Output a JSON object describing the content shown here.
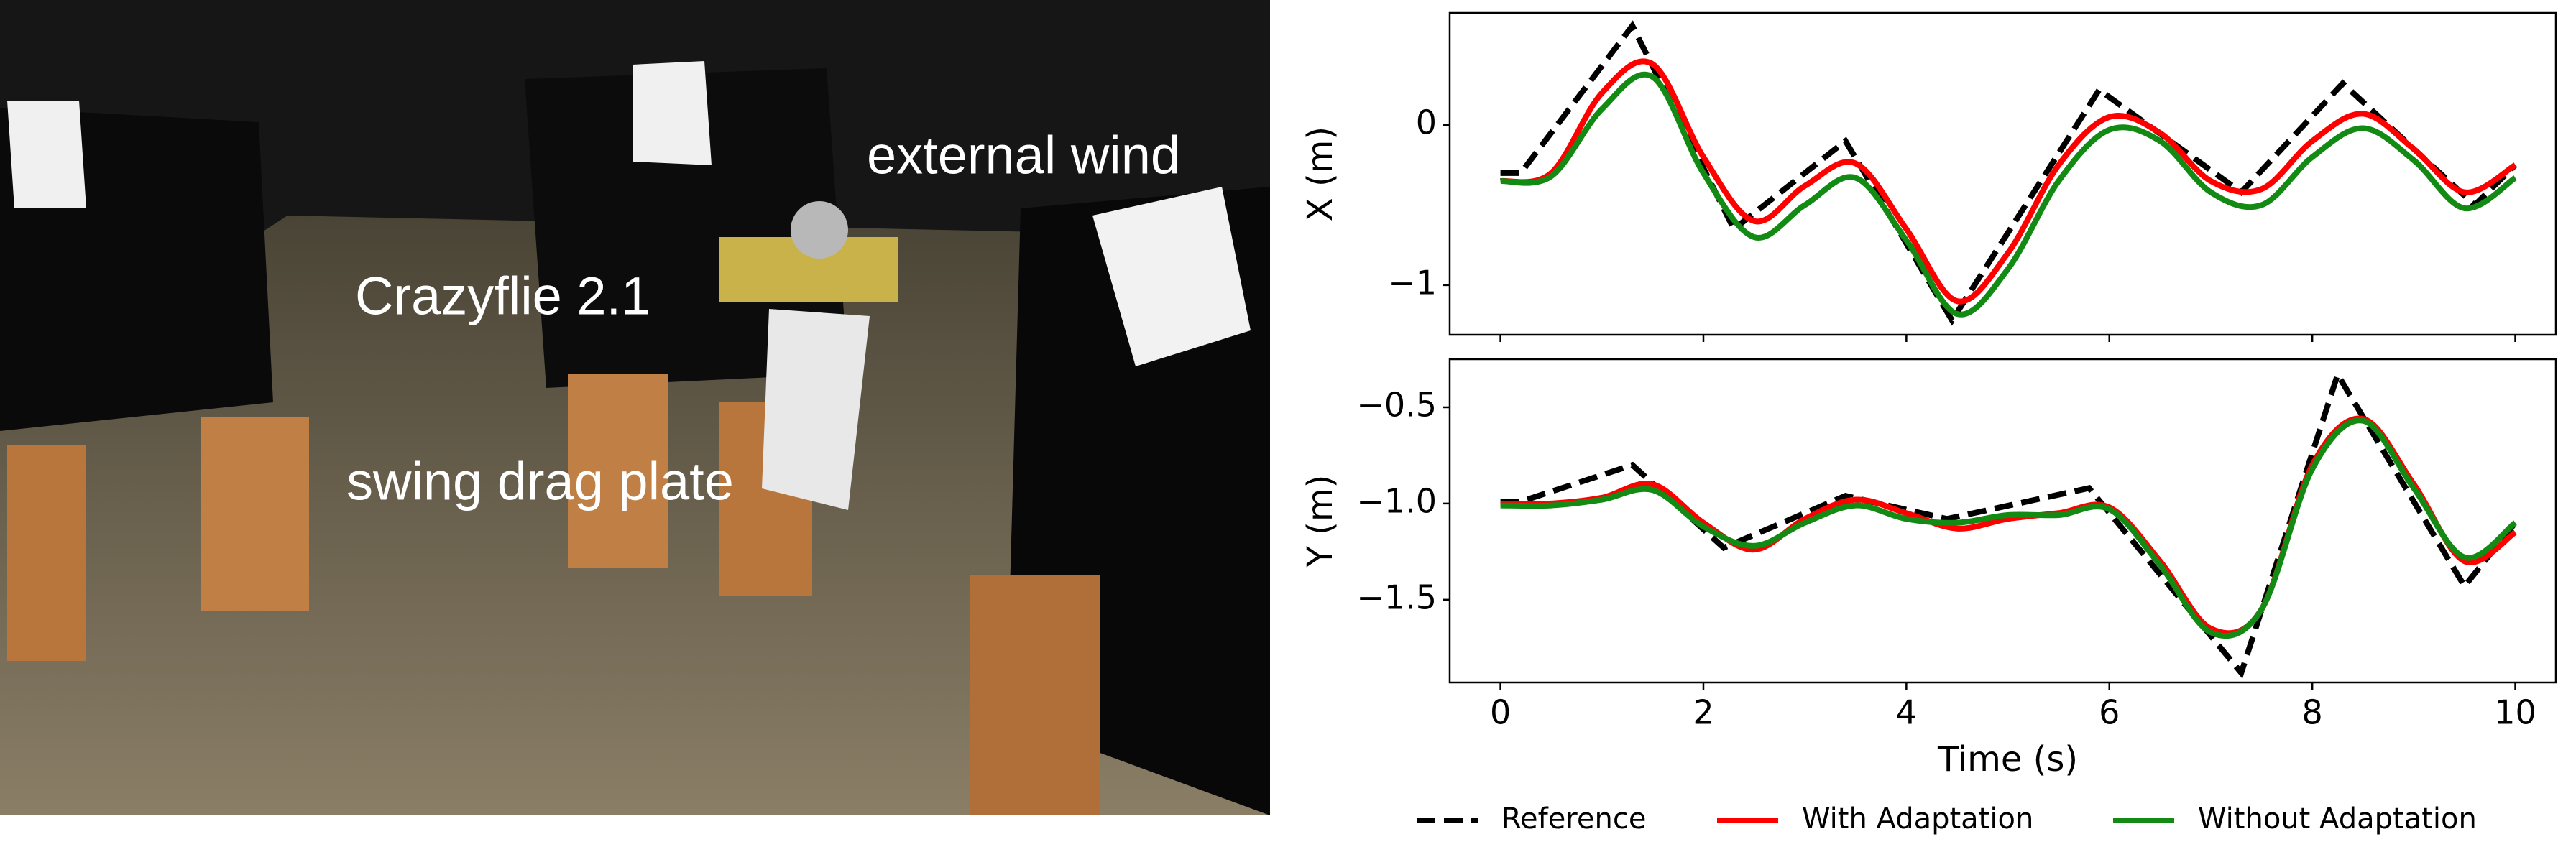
{
  "photo": {
    "labels": [
      "external wind",
      "Crazyflie 2.1",
      "swing drag plate"
    ]
  },
  "chart_data": [
    {
      "type": "line",
      "ylabel": "X (m)",
      "xlim": [
        -0.5,
        10.4
      ],
      "xticks": [
        0,
        2,
        4,
        6,
        8,
        10
      ],
      "xticklabels": false,
      "ylim": [
        -1.31,
        0.7
      ],
      "yticks": [
        {
          "value": -1,
          "label": "−1"
        },
        0
      ],
      "series": [
        {
          "name": "Reference",
          "color": "#000000",
          "linestyle": "dashed",
          "smooth": false,
          "x": [
            0,
            0.2,
            1.3,
            2.3,
            3.4,
            4.45,
            5.9,
            7.3,
            8.3,
            9.6,
            10
          ],
          "values": [
            -0.3,
            -0.3,
            0.62,
            -0.65,
            -0.1,
            -1.22,
            0.22,
            -0.42,
            0.26,
            -0.5,
            -0.25
          ]
        },
        {
          "name": "With Adaptation",
          "color": "#ff0000",
          "linestyle": "solid",
          "smooth": true,
          "x": [
            0,
            0.5,
            1,
            1.5,
            2,
            2.5,
            3,
            3.5,
            4,
            4.5,
            5,
            5.5,
            6,
            6.5,
            7,
            7.5,
            8,
            8.5,
            9,
            9.5,
            10
          ],
          "values": [
            -0.35,
            -0.3,
            0.2,
            0.38,
            -0.2,
            -0.6,
            -0.38,
            -0.24,
            -0.65,
            -1.1,
            -0.8,
            -0.25,
            0.05,
            -0.05,
            -0.35,
            -0.4,
            -0.1,
            0.07,
            -0.15,
            -0.42,
            -0.25
          ]
        },
        {
          "name": "Without Adaptation",
          "color": "#138a13",
          "linestyle": "solid",
          "smooth": true,
          "x": [
            0,
            0.5,
            1,
            1.5,
            2,
            2.5,
            3,
            3.5,
            4,
            4.5,
            5,
            5.5,
            6,
            6.5,
            7,
            7.5,
            8,
            8.5,
            9,
            9.5,
            10
          ],
          "values": [
            -0.35,
            -0.32,
            0.1,
            0.3,
            -0.3,
            -0.7,
            -0.5,
            -0.33,
            -0.72,
            -1.18,
            -0.9,
            -0.35,
            -0.03,
            -0.1,
            -0.42,
            -0.5,
            -0.2,
            -0.02,
            -0.22,
            -0.52,
            -0.33
          ]
        }
      ]
    },
    {
      "type": "line",
      "ylabel": "Y (m)",
      "xlabel": "Time (s)",
      "legend": "bottom",
      "xlim": [
        -0.5,
        10.4
      ],
      "xticks": [
        0,
        2,
        4,
        6,
        8,
        10
      ],
      "ylim": [
        -1.93,
        -0.25
      ],
      "yticks": [
        {
          "value": -1.5,
          "label": "−1.5"
        },
        {
          "value": -1.0,
          "label": "−1.0"
        },
        {
          "value": -0.5,
          "label": "−0.5"
        }
      ],
      "series": [
        {
          "name": "Reference",
          "color": "#000000",
          "linestyle": "dashed",
          "smooth": false,
          "x": [
            0,
            0.2,
            1.3,
            2.2,
            3.4,
            4.4,
            5.8,
            7.3,
            8.25,
            9.5,
            10
          ],
          "values": [
            -0.99,
            -0.99,
            -0.8,
            -1.23,
            -0.96,
            -1.08,
            -0.92,
            -1.88,
            -0.33,
            -1.43,
            -1.1
          ]
        },
        {
          "name": "With Adaptation",
          "color": "#ff0000",
          "linestyle": "solid",
          "smooth": true,
          "x": [
            0,
            0.5,
            1,
            1.5,
            2,
            2.5,
            3,
            3.5,
            4,
            4.5,
            5,
            5.5,
            6,
            6.5,
            7,
            7.5,
            8,
            8.5,
            9,
            9.5,
            10
          ],
          "values": [
            -1.0,
            -1.0,
            -0.97,
            -0.9,
            -1.1,
            -1.24,
            -1.08,
            -0.98,
            -1.05,
            -1.13,
            -1.08,
            -1.05,
            -1.02,
            -1.3,
            -1.65,
            -1.55,
            -0.8,
            -0.56,
            -0.9,
            -1.3,
            -1.15
          ]
        },
        {
          "name": "Without Adaptation",
          "color": "#138a13",
          "linestyle": "solid",
          "smooth": true,
          "x": [
            0,
            0.5,
            1,
            1.5,
            2,
            2.5,
            3,
            3.5,
            4,
            4.5,
            5,
            5.5,
            6,
            6.5,
            7,
            7.5,
            8,
            8.5,
            9,
            9.5,
            10
          ],
          "values": [
            -1.01,
            -1.01,
            -0.98,
            -0.93,
            -1.12,
            -1.22,
            -1.1,
            -1.01,
            -1.08,
            -1.1,
            -1.06,
            -1.06,
            -1.03,
            -1.32,
            -1.67,
            -1.55,
            -0.82,
            -0.57,
            -0.92,
            -1.28,
            -1.1
          ]
        }
      ]
    }
  ]
}
